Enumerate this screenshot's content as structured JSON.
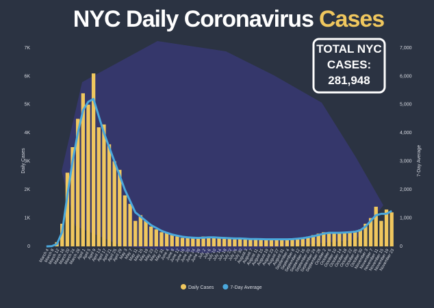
{
  "chart_data": {
    "type": "bar_line",
    "title": "NYC Daily Coronavirus",
    "title_highlight": "Cases",
    "total_box": {
      "label": "TOTAL NYC CASES:",
      "value": "281,948"
    },
    "ylabel": "Daily Cases",
    "y2label": "7-Day Average",
    "categories": [
      "March 4",
      "March 8",
      "March 12",
      "March 16",
      "March 20",
      "March 24",
      "March 28",
      "April 1",
      "April 5",
      "April 9",
      "April 13",
      "April 17",
      "April 21",
      "April 25",
      "April 29",
      "May 3",
      "May 7",
      "May 11",
      "May 15",
      "May 19",
      "May 23",
      "May 27",
      "May 31",
      "June 4",
      "June 8",
      "June 12",
      "June 16",
      "June 20",
      "June 24",
      "June 28",
      "July 2",
      "July 6",
      "July 10",
      "July 14",
      "July 18",
      "July 22",
      "July 26",
      "July 30",
      "August 3",
      "August 7",
      "August 11",
      "August 15",
      "August 19",
      "August 23",
      "August 27",
      "August 31",
      "September 4",
      "September 8",
      "September 12",
      "September 16",
      "September 20",
      "September 24",
      "September 28",
      "October 2",
      "October 6",
      "October 10",
      "October 14",
      "October 18",
      "October 22",
      "October 26",
      "October 30",
      "November 3",
      "November 7",
      "November 11",
      "November 15",
      "November 19",
      "November 23"
    ],
    "series": [
      {
        "name": "Daily Cases",
        "color": "#f0c75e",
        "kind": "bar",
        "values": [
          0,
          20,
          150,
          800,
          2600,
          3500,
          4500,
          5400,
          5000,
          6100,
          4200,
          4300,
          3600,
          3000,
          2700,
          1800,
          1500,
          900,
          1100,
          900,
          700,
          600,
          500,
          500,
          400,
          350,
          300,
          350,
          300,
          300,
          350,
          300,
          350,
          300,
          300,
          300,
          250,
          300,
          250,
          250,
          250,
          250,
          250,
          250,
          250,
          250,
          250,
          250,
          300,
          300,
          350,
          400,
          450,
          500,
          500,
          450,
          500,
          500,
          500,
          550,
          600,
          800,
          1000,
          1400,
          900,
          1300,
          1200
        ]
      },
      {
        "name": "7-Day Average",
        "color": "#4aa8dc",
        "kind": "line",
        "axis": "y2",
        "values": [
          0,
          10,
          80,
          500,
          1800,
          3000,
          4000,
          4800,
          5100,
          5200,
          4600,
          4000,
          3500,
          3000,
          2500,
          2000,
          1600,
          1200,
          1050,
          900,
          750,
          650,
          550,
          480,
          420,
          380,
          340,
          320,
          310,
          300,
          310,
          320,
          320,
          310,
          300,
          290,
          280,
          280,
          270,
          260,
          260,
          255,
          250,
          250,
          250,
          250,
          250,
          255,
          270,
          290,
          320,
          360,
          400,
          450,
          480,
          480,
          480,
          490,
          500,
          520,
          570,
          700,
          900,
          1100,
          1150,
          1150,
          1250
        ]
      }
    ],
    "ylim": [
      0,
      7000
    ],
    "yticks": [
      0,
      {
        "value": 1000,
        "label": "1K"
      },
      {
        "value": 2000,
        "label": "2K"
      },
      {
        "value": 3000,
        "label": "3K"
      },
      {
        "value": 4000,
        "label": "4K"
      },
      {
        "value": 5000,
        "label": "5K"
      },
      {
        "value": 6000,
        "label": "6K"
      },
      {
        "value": 7000,
        "label": "7K"
      }
    ],
    "y2lim": [
      0,
      7000
    ],
    "y2ticks": [
      0,
      {
        "value": 1000,
        "label": "1,000"
      },
      {
        "value": 2000,
        "label": "2,000"
      },
      {
        "value": 3000,
        "label": "3,000"
      },
      {
        "value": 4000,
        "label": "4,000"
      },
      {
        "value": 5000,
        "label": "5,000"
      },
      {
        "value": 6000,
        "label": "6,000"
      },
      {
        "value": 7000,
        "label": "7,000"
      }
    ]
  }
}
